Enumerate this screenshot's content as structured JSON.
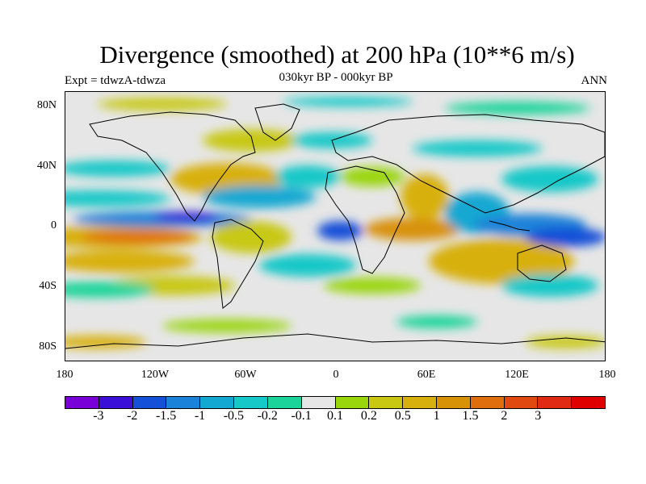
{
  "title": "Divergence (smoothed) at 200 hPa (10**6 m/s)",
  "subtitle_left": "Expt = tdwzA-tdwza",
  "subtitle_center": "030kyr BP - 000kyr BP",
  "subtitle_right": "ANN",
  "y_ticks": [
    "80N",
    "40N",
    "0",
    "40S",
    "80S"
  ],
  "x_ticks": [
    "180",
    "120W",
    "60W",
    "0",
    "60E",
    "120E",
    "180"
  ],
  "colorbar": {
    "colors": [
      "#7a00d8",
      "#3a0fd8",
      "#1450d8",
      "#1a82d8",
      "#13a8d2",
      "#16c8c8",
      "#1ad49a",
      "#e6e6e6",
      "#9ad60c",
      "#c8c812",
      "#d8b00e",
      "#d89208",
      "#e06e0c",
      "#e04a10",
      "#e02a14",
      "#e00000"
    ],
    "labels": [
      "-3",
      "-2",
      "-1.5",
      "-1",
      "-0.5",
      "-0.2",
      "-0.1",
      "0.1",
      "0.2",
      "0.5",
      "1",
      "1.5",
      "2",
      "3"
    ]
  }
}
